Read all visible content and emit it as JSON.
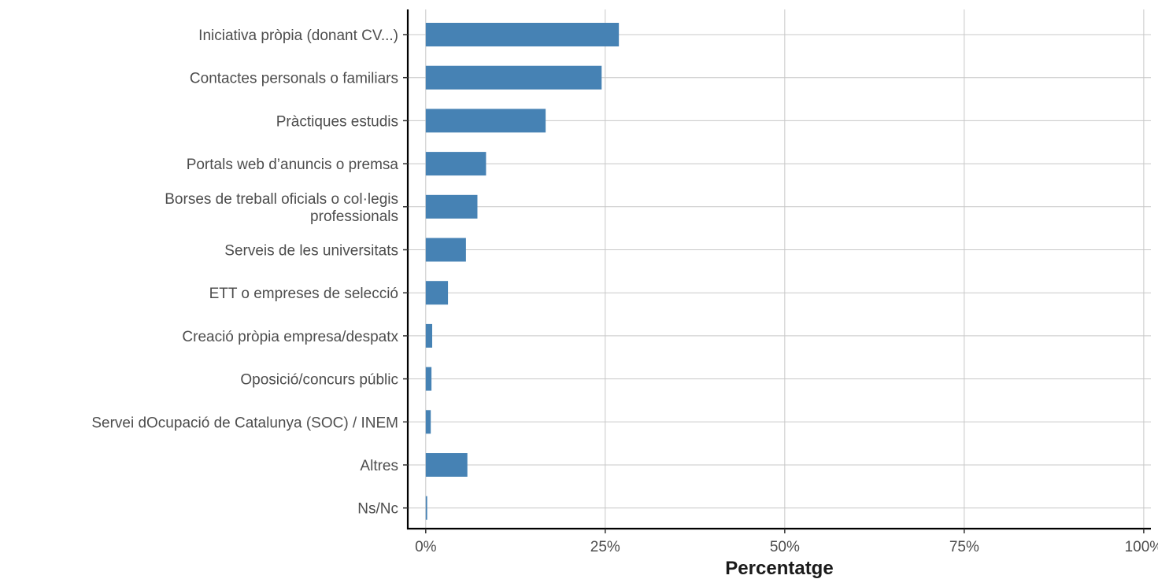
{
  "chart_data": {
    "type": "bar",
    "orientation": "horizontal",
    "categories": [
      [
        "Iniciativa pròpia (donant CV...)"
      ],
      [
        "Contactes personals o familiars"
      ],
      [
        "Pràctiques estudis"
      ],
      [
        "Portals web d’anuncis o premsa"
      ],
      [
        "Borses de treball oficials o col·legis",
        "professionals"
      ],
      [
        "Serveis de les universitats"
      ],
      [
        "ETT o empreses de selecció"
      ],
      [
        "Creació pròpia empresa/despatx"
      ],
      [
        "Oposició/concurs públic"
      ],
      [
        "Servei dOcupació de Catalunya (SOC) / INEM"
      ],
      [
        "Altres"
      ],
      [
        "Ns/Nc"
      ]
    ],
    "values": [
      26.9,
      24.5,
      16.7,
      8.4,
      7.2,
      5.6,
      3.1,
      0.9,
      0.8,
      0.7,
      5.8,
      0.2
    ],
    "xlabel": "Percentatge",
    "ylabel": "",
    "xlim": [
      -2.5,
      101
    ],
    "xticks": [
      0,
      25,
      50,
      75,
      100
    ],
    "xtick_labels": [
      "0%",
      "25%",
      "50%",
      "75%",
      "100%"
    ],
    "grid": true,
    "bar_color": "#4682b4",
    "grid_color": "#c8c8c8",
    "axis_color": "#000000"
  }
}
